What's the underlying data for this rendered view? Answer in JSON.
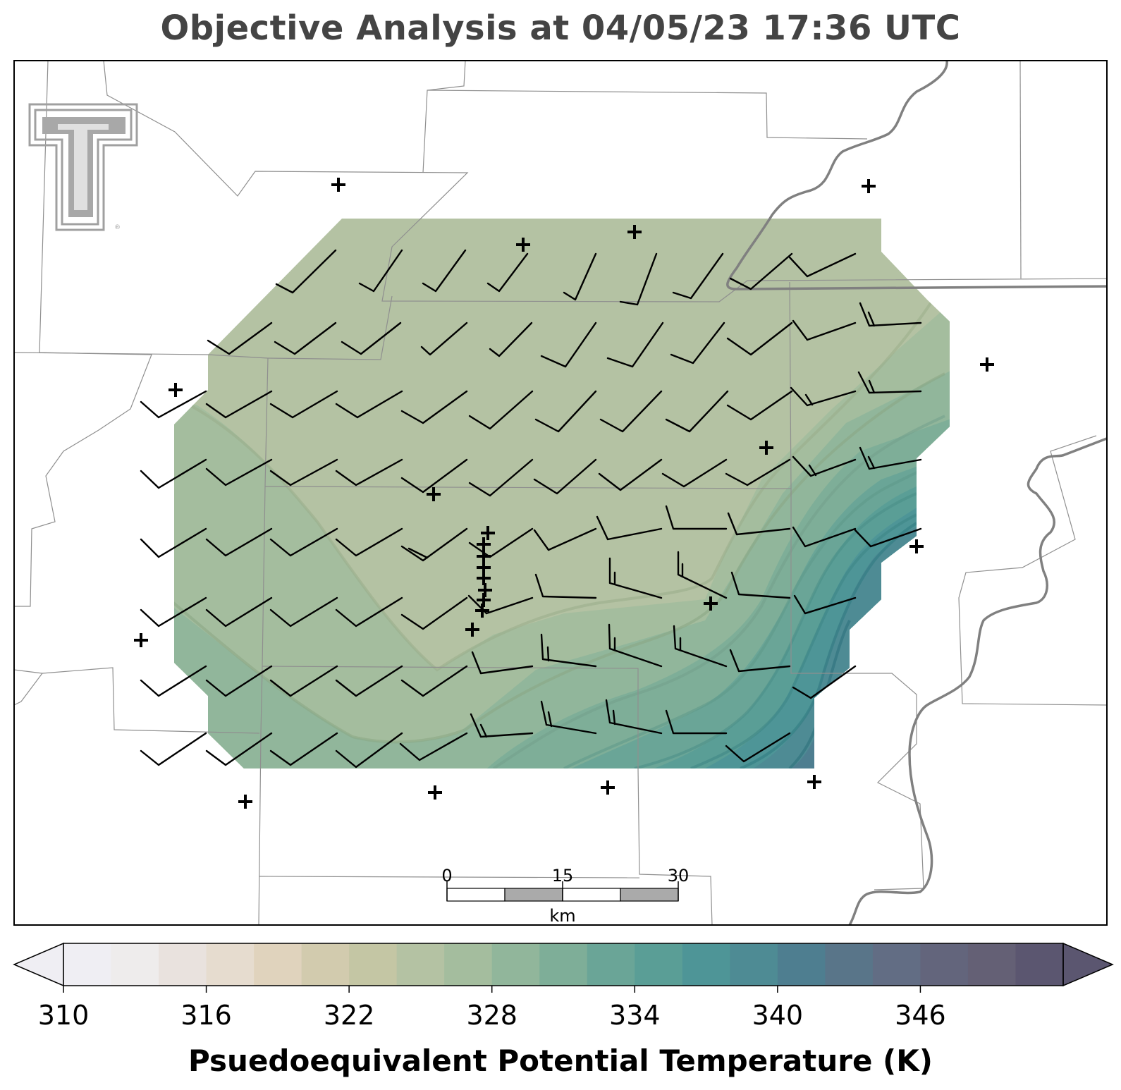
{
  "title": "Objective Analysis at 04/05/23 17:36 UTC",
  "colorbar": {
    "label": "Psuedoequivalent Potential Temperature (K)",
    "min": 310,
    "max": 352,
    "step": 2,
    "ticks": [
      "310",
      "316",
      "322",
      "328",
      "334",
      "340",
      "346"
    ],
    "colors": [
      "#efeef3",
      "#eeecec",
      "#e9e2de",
      "#e6dccf",
      "#e0d3bd",
      "#d2cbae",
      "#c4c6a4",
      "#b4c2a3",
      "#a4bd9e",
      "#91b69b",
      "#7eae98",
      "#6aa597",
      "#5a9e96",
      "#4e9597",
      "#4e8b94",
      "#4e7e90",
      "#597589",
      "#626d84",
      "#63657c",
      "#646075",
      "#5b5670"
    ],
    "extend": "both"
  },
  "scale_bar": {
    "labels": [
      "0",
      "15",
      "30"
    ],
    "unit": "km"
  },
  "logo": {
    "name": "texas-tech-double-t-logo",
    "registered_mark": "®"
  },
  "station_marker": "+",
  "field_colors": {
    "background_low": "#b4c2a3",
    "mid": "#a4bd9e",
    "high": "#4e9597",
    "max": "#4e7e90"
  }
}
